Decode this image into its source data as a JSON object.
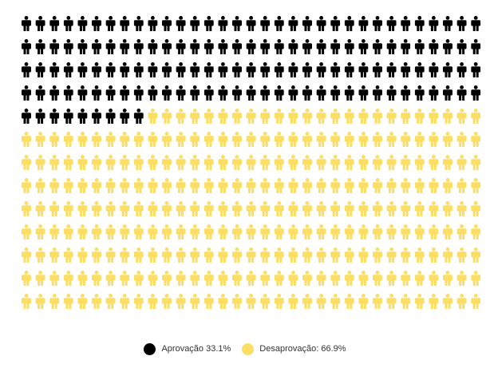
{
  "chart_data": {
    "type": "pictograph",
    "title": "",
    "icon": "person-icon",
    "total_icons": 429,
    "grid": {
      "rows": 13,
      "columns": 33
    },
    "series": [
      {
        "name": "Aprovação",
        "label": "Aprovação 33.1%",
        "value": 33.1,
        "icons": 141,
        "color": "#000000"
      },
      {
        "name": "Desaprovação",
        "label": "Desaprovação: 66.9%",
        "value": 66.9,
        "icons": 288,
        "color": "#fbde62"
      }
    ],
    "legend_position": "bottom-center"
  }
}
